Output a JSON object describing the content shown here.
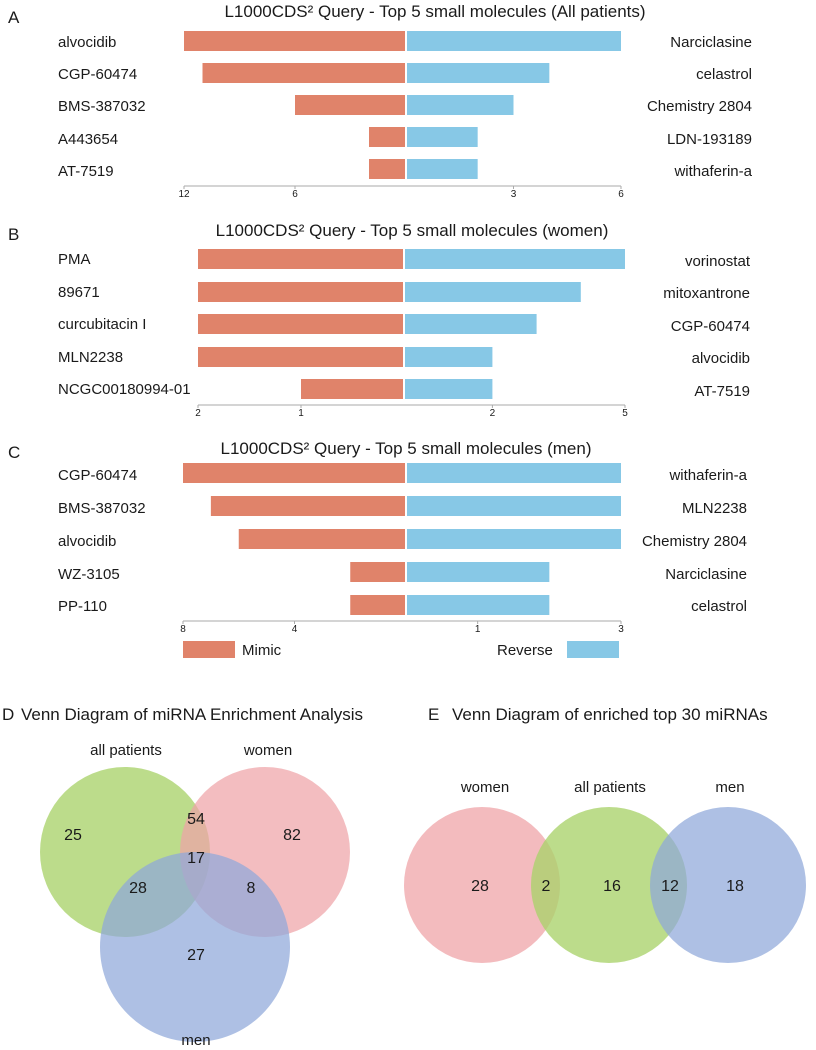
{
  "colors": {
    "mimic": "#E0836A",
    "reverse": "#87C8E6",
    "green": "#A9D26A",
    "pink": "#EFA4A8",
    "blue": "#8FA8DA"
  },
  "chart_data": [
    {
      "type": "bar",
      "panel": "A",
      "title": "L1000CDS² Query - Top 5 small molecules (All patients)",
      "left_labels": [
        "alvocidib",
        "CGP-60474",
        "BMS-387032",
        "A443654",
        "AT-7519"
      ],
      "right_labels": [
        "Narciclasine",
        "celastrol",
        "Chemistry 2804",
        "LDN-193189",
        "withaferin-a"
      ],
      "series": [
        {
          "name": "Mimic",
          "values": [
            12,
            11,
            6,
            2,
            2
          ]
        },
        {
          "name": "Reverse",
          "values": [
            6,
            4,
            3,
            2,
            2
          ]
        }
      ],
      "left_ticks": [
        {
          "value": 12,
          "label": "12"
        },
        {
          "value": 6,
          "label": "6"
        }
      ],
      "right_ticks": [
        {
          "value": 3,
          "label": "3"
        },
        {
          "value": 6,
          "label": "6"
        }
      ],
      "left_max": 12,
      "right_max": 6
    },
    {
      "type": "bar",
      "panel": "B",
      "title": "L1000CDS² Query - Top 5 small molecules (women)",
      "left_labels": [
        "PMA",
        "89671",
        "curcubitacin I",
        "MLN2238",
        "NCGC00180994-01"
      ],
      "right_labels": [
        "vorinostat",
        "mitoxantrone",
        "CGP-60474",
        "alvocidib",
        "AT-7519"
      ],
      "series": [
        {
          "name": "Mimic",
          "values": [
            2,
            2,
            2,
            2,
            1
          ]
        },
        {
          "name": "Reverse",
          "values": [
            5,
            4,
            3,
            2,
            2
          ]
        }
      ],
      "left_ticks": [
        {
          "value": 2,
          "label": "2"
        },
        {
          "value": 1,
          "label": "1"
        }
      ],
      "right_ticks": [
        {
          "value": 2,
          "label": "2"
        },
        {
          "value": 5,
          "label": "5"
        }
      ],
      "left_max": 2,
      "right_max": 5
    },
    {
      "type": "bar",
      "panel": "C",
      "title": "L1000CDS² Query - Top 5 small molecules (men)",
      "left_labels": [
        "CGP-60474",
        "BMS-387032",
        "alvocidib",
        "WZ-3105",
        "PP-110"
      ],
      "right_labels": [
        "withaferin-a",
        "MLN2238",
        "Chemistry 2804",
        "Narciclasine",
        "celastrol"
      ],
      "series": [
        {
          "name": "Mimic",
          "values": [
            8,
            7,
            6,
            2,
            2
          ]
        },
        {
          "name": "Reverse",
          "values": [
            3,
            3,
            3,
            2,
            2
          ]
        }
      ],
      "left_ticks": [
        {
          "value": 8,
          "label": "8"
        },
        {
          "value": 4,
          "label": "4"
        }
      ],
      "right_ticks": [
        {
          "value": 1,
          "label": "1"
        },
        {
          "value": 3,
          "label": "3"
        }
      ],
      "left_max": 8,
      "right_max": 3
    }
  ],
  "legend": {
    "mimic": "Mimic",
    "reverse": "Reverse"
  },
  "venn_d": {
    "panel": "D",
    "title": "Venn Diagram of miRNA Enrichment Analysis",
    "sets": [
      "all patients",
      "women",
      "men"
    ],
    "regions": {
      "all_only": "25",
      "women_only": "82",
      "men_only": "27",
      "all_women": "54",
      "all_men": "28",
      "women_men": "8",
      "all_women_men": "17"
    }
  },
  "venn_e": {
    "panel": "E",
    "title": "Venn Diagram of enriched top 30 miRNAs",
    "sets": [
      "women",
      "all patients",
      "men"
    ],
    "regions": {
      "women_only": "28",
      "women_all": "2",
      "all_only": "16",
      "all_men": "12",
      "men_only": "18"
    }
  }
}
